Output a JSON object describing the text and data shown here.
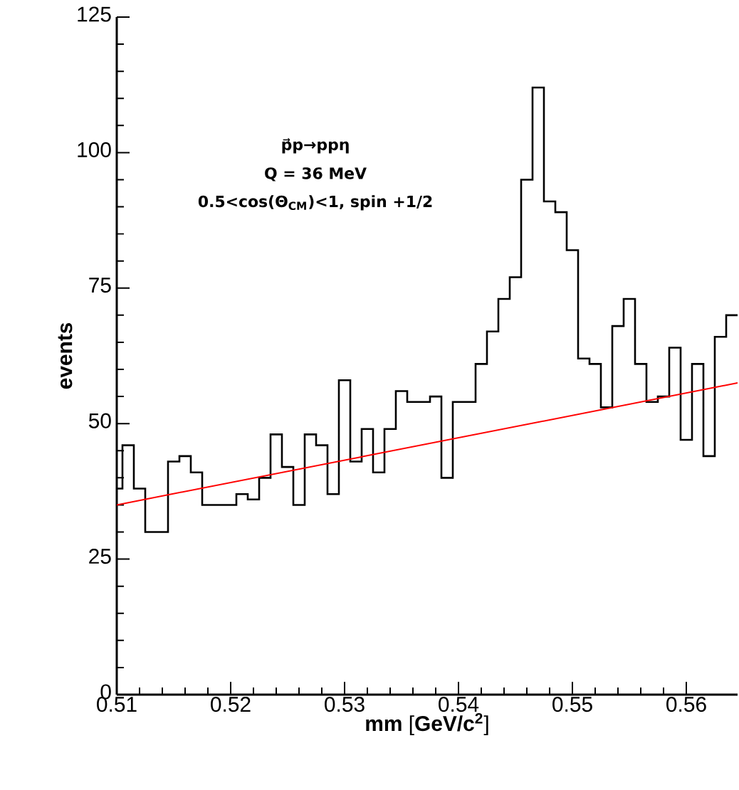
{
  "chart_data": {
    "type": "histogram",
    "xlabel": "**mm** [**GeV/c$^{2}$**]",
    "ylabel": "events",
    "annotations": [
      "p⃗p→ppη",
      "Q = 36 MeV",
      "0.5<cos(Θ$_{CM}$)<1, spin +1/2"
    ],
    "bins": [
      0.51,
      0.5105,
      0.5115,
      0.5125,
      0.5135,
      0.5145,
      0.5155,
      0.5165,
      0.5175,
      0.5185,
      0.5195,
      0.5205,
      0.5215,
      0.5225,
      0.5235,
      0.5245,
      0.5255,
      0.5265,
      0.5275,
      0.5285,
      0.5295,
      0.5305,
      0.5315,
      0.5325,
      0.5335,
      0.5345,
      0.5355,
      0.5365,
      0.5375,
      0.5385,
      0.5395,
      0.5405,
      0.5415,
      0.5425,
      0.5435,
      0.5445,
      0.5455,
      0.5465,
      0.5475,
      0.5485,
      0.5495,
      0.5505,
      0.5515,
      0.5525,
      0.5535,
      0.5545,
      0.5555,
      0.5565,
      0.5575,
      0.5585,
      0.5595,
      0.5605,
      0.5615,
      0.5625,
      0.5635,
      0.5645
    ],
    "values": [
      38,
      46,
      38,
      30,
      30,
      43,
      44,
      41,
      35,
      35,
      35,
      37,
      36,
      40,
      48,
      42,
      35,
      48,
      46,
      37,
      58,
      43,
      49,
      41,
      49,
      56,
      54,
      54,
      55,
      40,
      54,
      54,
      61,
      67,
      73,
      77,
      95,
      112,
      91,
      89,
      82,
      62,
      61,
      53,
      68,
      73,
      61,
      54,
      55,
      64,
      47,
      61,
      44,
      66,
      70
    ],
    "color": "#000000",
    "series": [
      {
        "type": "line",
        "color": "#ff0000",
        "x": [
          0.51,
          0.5645
        ],
        "values": [
          35,
          57.5
        ]
      }
    ],
    "xlim": [
      0.51,
      0.5645
    ],
    "ylim": [
      0,
      125
    ],
    "xticks": [
      0.51,
      0.52,
      0.53,
      0.54,
      0.55,
      0.56
    ],
    "yticks": [
      0,
      25,
      50,
      75,
      100,
      125
    ]
  }
}
